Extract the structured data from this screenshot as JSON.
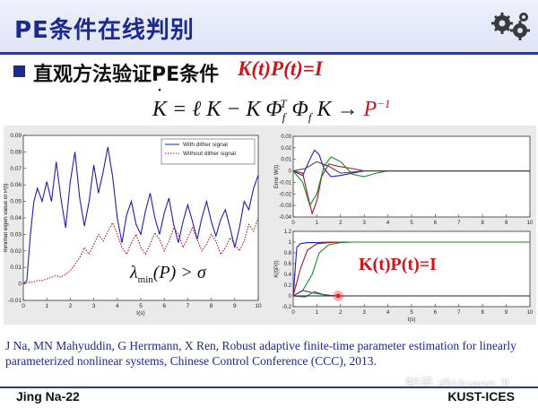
{
  "slide": {
    "title": "PE条件在线判别",
    "heading": "直观方法验证PE条件",
    "heading_formula": "K(t)P(t)=I",
    "footer_left": "Jing Na-22",
    "footer_right": "KUST-ICES",
    "watermark": "知乎 @Huang.Jl",
    "reference": "J Na, MN Mahyuddin, G Herrmann, X Ren, Robust adaptive finite-time parameter estimation for linearly parameterized nonlinear systems, Chinese Control Conference (CCC), 2013.",
    "kp_label": "K(t)P(t)=I",
    "icons": [
      "gear-icon",
      "bullet-square-icon"
    ],
    "colors": {
      "title": "#1c2a8c",
      "formula_red": "#d0141a",
      "panel": "#eaeaea"
    }
  },
  "chart_data": [
    {
      "type": "line",
      "xlabel": "t(s)",
      "ylabel": "minimal eigen value of P(t)",
      "xlim": [
        0,
        10
      ],
      "ylim": [
        -0.01,
        0.09
      ],
      "xticks": [
        0,
        1,
        2,
        3,
        4,
        5,
        6,
        7,
        8,
        9,
        10
      ],
      "yticks": [
        -0.01,
        0,
        0.01,
        0.02,
        0.03,
        0.04,
        0.05,
        0.06,
        0.07,
        0.08,
        0.09
      ],
      "legend": "top-right",
      "series": [
        {
          "name": "With dither signal",
          "color": "#1f1fb4",
          "style": "solid",
          "x": [
            0,
            0.15,
            0.3,
            0.45,
            0.6,
            0.8,
            1,
            1.2,
            1.4,
            1.6,
            1.8,
            2,
            2.2,
            2.4,
            2.6,
            2.8,
            3,
            3.2,
            3.4,
            3.6,
            3.8,
            4,
            4.2,
            4.4,
            4.6,
            4.8,
            5,
            5.2,
            5.4,
            5.6,
            5.8,
            6,
            6.2,
            6.4,
            6.6,
            6.8,
            7,
            7.2,
            7.4,
            7.6,
            7.8,
            8,
            8.2,
            8.4,
            8.6,
            8.8,
            9,
            9.2,
            9.4,
            9.6,
            9.8,
            10
          ],
          "y": [
            0,
            0.002,
            0.03,
            0.05,
            0.058,
            0.05,
            0.062,
            0.05,
            0.074,
            0.052,
            0.034,
            0.062,
            0.08,
            0.052,
            0.035,
            0.05,
            0.072,
            0.055,
            0.068,
            0.083,
            0.065,
            0.04,
            0.025,
            0.042,
            0.05,
            0.036,
            0.03,
            0.044,
            0.055,
            0.04,
            0.03,
            0.043,
            0.052,
            0.036,
            0.025,
            0.038,
            0.048,
            0.038,
            0.027,
            0.04,
            0.05,
            0.038,
            0.029,
            0.039,
            0.045,
            0.034,
            0.022,
            0.034,
            0.05,
            0.045,
            0.058,
            0.066
          ]
        },
        {
          "name": "Without dither signal",
          "color": "#b4141a",
          "style": "dotted",
          "x": [
            0,
            0.2,
            0.4,
            0.6,
            0.8,
            1,
            1.2,
            1.4,
            1.6,
            1.8,
            2,
            2.2,
            2.4,
            2.6,
            2.8,
            3,
            3.2,
            3.4,
            3.6,
            3.8,
            4,
            4.2,
            4.4,
            4.6,
            4.8,
            5,
            5.2,
            5.4,
            5.6,
            5.8,
            6,
            6.2,
            6.4,
            6.6,
            6.8,
            7,
            7.2,
            7.4,
            7.6,
            7.8,
            8,
            8.2,
            8.4,
            8.6,
            8.8,
            9,
            9.2,
            9.4,
            9.6,
            9.8,
            10
          ],
          "y": [
            0,
            0.001,
            0.001,
            0.002,
            0.002,
            0.003,
            0.004,
            0.005,
            0.004,
            0.006,
            0.008,
            0.012,
            0.016,
            0.022,
            0.018,
            0.024,
            0.03,
            0.026,
            0.032,
            0.037,
            0.03,
            0.022,
            0.018,
            0.025,
            0.03,
            0.022,
            0.018,
            0.024,
            0.031,
            0.027,
            0.02,
            0.026,
            0.034,
            0.03,
            0.022,
            0.028,
            0.034,
            0.027,
            0.02,
            0.024,
            0.03,
            0.026,
            0.018,
            0.022,
            0.028,
            0.024,
            0.02,
            0.026,
            0.036,
            0.032,
            0.04
          ]
        }
      ]
    },
    {
      "type": "line",
      "xlabel": "",
      "ylabel": "Error W(t)",
      "xlim": [
        0,
        10
      ],
      "ylim": [
        -0.04,
        0.03
      ],
      "xticks": [
        0,
        1,
        2,
        3,
        4,
        5,
        6,
        7,
        8,
        9,
        10
      ],
      "yticks": [
        -0.04,
        -0.03,
        -0.02,
        -0.01,
        0,
        0.01,
        0.02,
        0.03
      ],
      "series": [
        {
          "color": "#1f1fb4",
          "x": [
            0,
            0.4,
            0.7,
            0.9,
            1.1,
            1.3,
            1.6,
            2,
            2.5,
            3,
            4,
            10
          ],
          "y": [
            0,
            -0.004,
            0.01,
            0.018,
            0.014,
            0.002,
            -0.005,
            -0.004,
            -0.002,
            0,
            0,
            0
          ]
        },
        {
          "color": "#b4141a",
          "x": [
            0,
            0.4,
            0.6,
            0.8,
            1,
            1.2,
            1.5,
            1.9,
            2.5,
            3,
            4,
            10
          ],
          "y": [
            0,
            -0.002,
            -0.02,
            -0.037,
            -0.026,
            -0.005,
            0.006,
            0.004,
            0.002,
            0,
            0,
            0
          ]
        },
        {
          "color": "#1a8a2a",
          "x": [
            0,
            0.4,
            0.7,
            1,
            1.3,
            1.6,
            2,
            2.5,
            3,
            3.5,
            4,
            10
          ],
          "y": [
            0,
            -0.01,
            -0.03,
            -0.02,
            0.004,
            0.012,
            0.008,
            -0.003,
            -0.005,
            -0.002,
            0,
            0
          ]
        },
        {
          "color": "#444444",
          "x": [
            0,
            0.5,
            1,
            1.5,
            2,
            2.5,
            3,
            3.5,
            4,
            10
          ],
          "y": [
            0,
            0.002,
            0.008,
            0.004,
            -0.002,
            -0.001,
            0,
            0,
            0,
            0
          ]
        }
      ]
    },
    {
      "type": "line",
      "xlabel": "t(s)",
      "ylabel": "K(t)P(t)",
      "xlim": [
        0,
        10
      ],
      "ylim": [
        -0.2,
        1.2
      ],
      "xticks": [
        0,
        1,
        2,
        3,
        4,
        5,
        6,
        7,
        8,
        9,
        10
      ],
      "yticks": [
        -0.2,
        0,
        0.2,
        0.4,
        0.6,
        0.8,
        1,
        1.2
      ],
      "series": [
        {
          "color": "#1f1fb4",
          "x": [
            0,
            0.15,
            0.3,
            0.6,
            1,
            1.5,
            2,
            2.5,
            10
          ],
          "y": [
            0,
            0.9,
            0.97,
            0.99,
            0.99,
            1,
            1,
            1,
            1
          ]
        },
        {
          "color": "#b4141a",
          "x": [
            0,
            0.3,
            0.6,
            1,
            1.5,
            2,
            2.5,
            10
          ],
          "y": [
            0,
            0.5,
            0.85,
            0.97,
            0.99,
            1,
            1,
            1
          ]
        },
        {
          "color": "#1a8a2a",
          "x": [
            0,
            0.4,
            0.8,
            1.1,
            1.5,
            2,
            2.5,
            3,
            10
          ],
          "y": [
            0,
            0.1,
            0.4,
            0.8,
            0.95,
            0.99,
            1,
            1,
            1
          ]
        },
        {
          "color": "#5a2a8a",
          "x": [
            0,
            0.4,
            0.8,
            1.2,
            1.6,
            2,
            3,
            10
          ],
          "y": [
            0,
            0.1,
            0.06,
            0.03,
            0.01,
            0,
            0,
            0
          ]
        },
        {
          "color": "#1a8a2a",
          "x": [
            0,
            0.5,
            0.9,
            1.3,
            1.7,
            2.2,
            3,
            10
          ],
          "y": [
            0,
            -0.02,
            0.08,
            0.02,
            0,
            0,
            0,
            0
          ]
        },
        {
          "color": "#222222",
          "x": [
            0,
            1,
            2,
            3,
            10
          ],
          "y": [
            0,
            0,
            0,
            0,
            0
          ]
        }
      ]
    }
  ]
}
